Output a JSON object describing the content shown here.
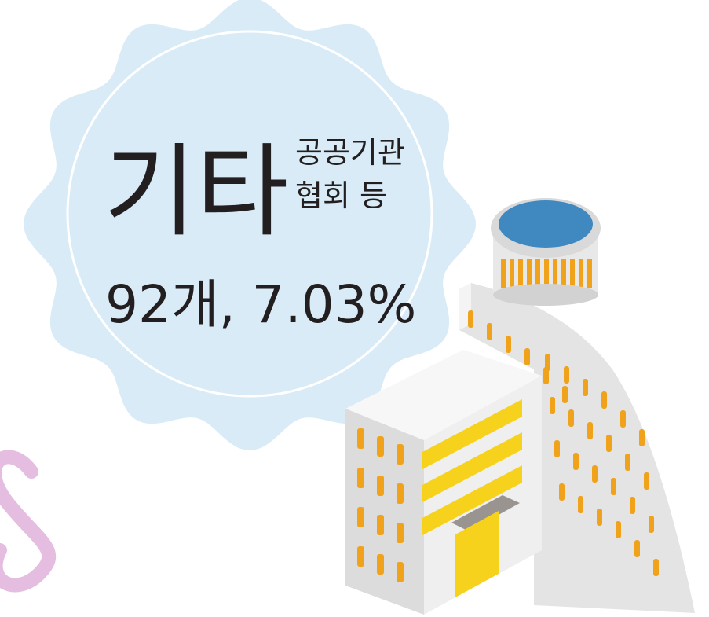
{
  "badge": {
    "title": "기타",
    "subtitle_lines": [
      "공공기관",
      "협회 등"
    ],
    "stat": "92개, 7.03%"
  }
}
